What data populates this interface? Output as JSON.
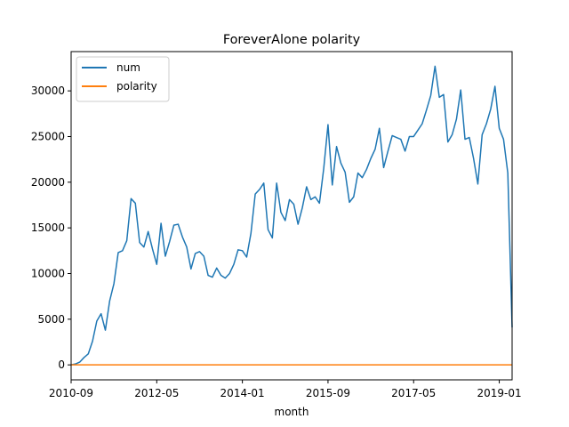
{
  "chart_data": {
    "type": "line",
    "title": "ForeverAlone polarity",
    "xlabel": "month",
    "ylabel": "",
    "x_ticks": [
      "2010-09",
      "2012-05",
      "2014-01",
      "2015-09",
      "2017-05",
      "2019-01"
    ],
    "y_ticks": [
      0,
      5000,
      10000,
      15000,
      20000,
      25000,
      30000
    ],
    "ylim": [
      -1640,
      34300
    ],
    "grid": false,
    "legend": "top-left",
    "x": [
      "2010-09",
      "2010-10",
      "2010-11",
      "2010-12",
      "2011-01",
      "2011-02",
      "2011-03",
      "2011-04",
      "2011-05",
      "2011-06",
      "2011-07",
      "2011-08",
      "2011-09",
      "2011-10",
      "2011-11",
      "2011-12",
      "2012-01",
      "2012-02",
      "2012-03",
      "2012-04",
      "2012-05",
      "2012-06",
      "2012-07",
      "2012-08",
      "2012-09",
      "2012-10",
      "2012-11",
      "2012-12",
      "2013-01",
      "2013-02",
      "2013-03",
      "2013-04",
      "2013-05",
      "2013-06",
      "2013-07",
      "2013-08",
      "2013-09",
      "2013-10",
      "2013-11",
      "2013-12",
      "2014-01",
      "2014-02",
      "2014-03",
      "2014-04",
      "2014-05",
      "2014-06",
      "2014-07",
      "2014-08",
      "2014-09",
      "2014-10",
      "2014-11",
      "2014-12",
      "2015-01",
      "2015-02",
      "2015-03",
      "2015-04",
      "2015-05",
      "2015-06",
      "2015-07",
      "2015-08",
      "2015-09",
      "2015-10",
      "2015-11",
      "2015-12",
      "2016-01",
      "2016-02",
      "2016-03",
      "2016-04",
      "2016-05",
      "2016-06",
      "2016-07",
      "2016-08",
      "2016-09",
      "2016-10",
      "2016-11",
      "2016-12",
      "2017-01",
      "2017-02",
      "2017-03",
      "2017-04",
      "2017-05",
      "2017-06",
      "2017-07",
      "2017-08",
      "2017-09",
      "2017-10",
      "2017-11",
      "2017-12",
      "2018-01",
      "2018-02",
      "2018-03",
      "2018-04",
      "2018-05",
      "2018-06",
      "2018-07",
      "2018-08",
      "2018-09",
      "2018-10",
      "2018-11",
      "2018-12",
      "2019-01",
      "2019-02",
      "2019-03",
      "2019-04"
    ],
    "series": [
      {
        "name": "num",
        "color": "#1f77b4",
        "values": [
          0,
          100,
          300,
          800,
          1200,
          2600,
          4800,
          5600,
          3800,
          7000,
          8900,
          12300,
          12500,
          13600,
          18200,
          17700,
          13400,
          12900,
          14600,
          12700,
          11000,
          15500,
          11900,
          13500,
          15300,
          15400,
          14000,
          12900,
          10500,
          12200,
          12400,
          11900,
          9800,
          9600,
          10600,
          9800,
          9500,
          10000,
          11000,
          12600,
          12500,
          11800,
          14400,
          18700,
          19200,
          19900,
          14800,
          13900,
          19900,
          16700,
          15800,
          18100,
          17600,
          15400,
          17200,
          19500,
          18100,
          18400,
          17700,
          21500,
          26300,
          19700,
          23900,
          22100,
          21100,
          17800,
          18400,
          21000,
          20500,
          21400,
          22600,
          23600,
          25900,
          21600,
          23400,
          25100,
          24900,
          24700,
          23400,
          25000,
          25000,
          25700,
          26400,
          27900,
          29500,
          32700,
          29300,
          29600,
          24400,
          25200,
          26900,
          30100,
          24700,
          24900,
          22600,
          19800,
          25200,
          26400,
          28000,
          30500,
          25900,
          24700,
          21000,
          4100
        ]
      },
      {
        "name": "polarity",
        "color": "#ff7f0e",
        "values": [
          0,
          0,
          0,
          0,
          0,
          0,
          0,
          0,
          0,
          0,
          0,
          0,
          0,
          0,
          0,
          0,
          0,
          0,
          0,
          0,
          0,
          0,
          0,
          0,
          0,
          0,
          0,
          0,
          0,
          0,
          0,
          0,
          0,
          0,
          0,
          0,
          0,
          0,
          0,
          0,
          0,
          0,
          0,
          0,
          0,
          0,
          0,
          0,
          0,
          0,
          0,
          0,
          0,
          0,
          0,
          0,
          0,
          0,
          0,
          0,
          0,
          0,
          0,
          0,
          0,
          0,
          0,
          0,
          0,
          0,
          0,
          0,
          0,
          0,
          0,
          0,
          0,
          0,
          0,
          0,
          0,
          0,
          0,
          0,
          0,
          0,
          0,
          0,
          0,
          0,
          0,
          0,
          0,
          0,
          0,
          0,
          0,
          0,
          0,
          0,
          0,
          0,
          0,
          0
        ]
      }
    ]
  }
}
